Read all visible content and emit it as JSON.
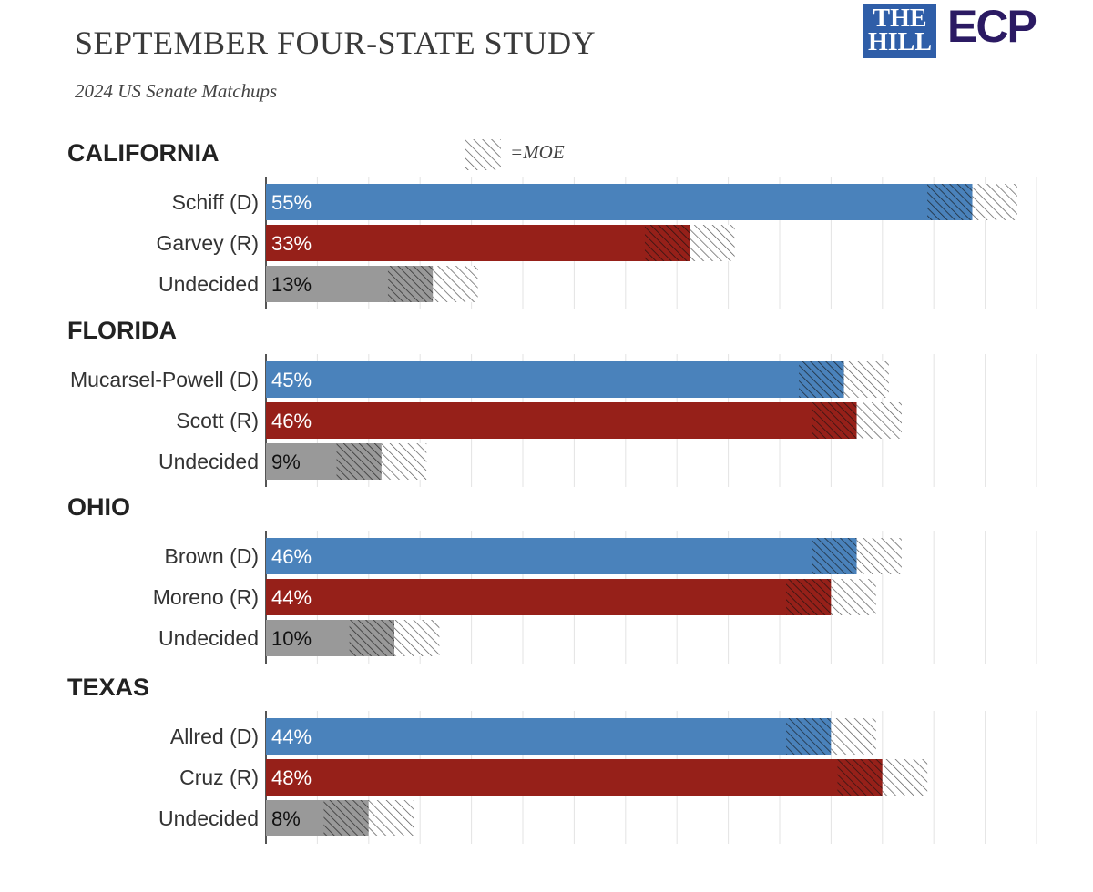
{
  "header": {
    "title": "SEPTEMBER FOUR-STATE STUDY",
    "subtitle": "2024 US Senate Matchups"
  },
  "logos": {
    "hill_line1": "THE",
    "hill_line2": "HILL",
    "ecp": "ECP"
  },
  "legend": {
    "label": "=MOE"
  },
  "colors": {
    "democrat": "#4a82bb",
    "republican": "#962019",
    "undecided": "#999999",
    "gridline": "#e3e3e3"
  },
  "chart_data": {
    "type": "bar",
    "orientation": "horizontal",
    "moe": 3.5,
    "grid": true,
    "groups": [
      {
        "state": "CALIFORNIA",
        "bars": [
          {
            "name": "Schiff (D)",
            "party": "democrat",
            "value": 55,
            "label": "55%"
          },
          {
            "name": "Garvey (R)",
            "party": "republican",
            "value": 33,
            "label": "33%"
          },
          {
            "name": "Undecided",
            "party": "undecided",
            "value": 13,
            "label": "13%"
          }
        ]
      },
      {
        "state": "FLORIDA",
        "bars": [
          {
            "name": "Mucarsel-Powell (D)",
            "party": "democrat",
            "value": 45,
            "label": "45%"
          },
          {
            "name": "Scott (R)",
            "party": "republican",
            "value": 46,
            "label": "46%"
          },
          {
            "name": "Undecided",
            "party": "undecided",
            "value": 9,
            "label": "9%"
          }
        ]
      },
      {
        "state": "OHIO",
        "bars": [
          {
            "name": "Brown (D)",
            "party": "democrat",
            "value": 46,
            "label": "46%"
          },
          {
            "name": "Moreno (R)",
            "party": "republican",
            "value": 44,
            "label": "44%"
          },
          {
            "name": "Undecided",
            "party": "undecided",
            "value": 10,
            "label": "10%"
          }
        ]
      },
      {
        "state": "TEXAS",
        "bars": [
          {
            "name": "Allred (D)",
            "party": "democrat",
            "value": 44,
            "label": "44%"
          },
          {
            "name": "Cruz (R)",
            "party": "republican",
            "value": 48,
            "label": "48%"
          },
          {
            "name": "Undecided",
            "party": "undecided",
            "value": 8,
            "label": "8%"
          }
        ]
      }
    ]
  }
}
